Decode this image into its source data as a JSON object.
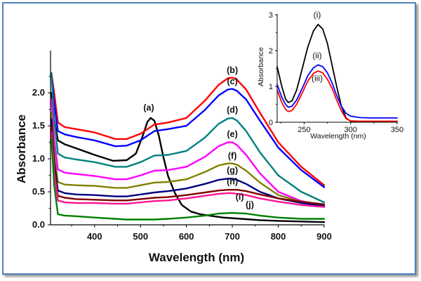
{
  "chart_data": [
    {
      "type": "line",
      "title": "",
      "xlabel": "Wavelength (nm)",
      "ylabel": "Absorbance",
      "xlim": [
        304,
        900
      ],
      "ylim": [
        0,
        2.3
      ],
      "xticks": [
        400,
        500,
        600,
        700,
        800,
        900
      ],
      "yticks": [
        "0.0",
        "0.5",
        "1.0",
        "1.5",
        "2.0"
      ],
      "grid": false,
      "legend": "inline labels",
      "series": [
        {
          "name": "(a)",
          "color": "#000000",
          "x": [
            306,
            312,
            320,
            335,
            360,
            400,
            440,
            470,
            490,
            505,
            515,
            522,
            530,
            540,
            550,
            560,
            575,
            590,
            610,
            630,
            650,
            680,
            720,
            760,
            800,
            850,
            900
          ],
          "y": [
            2.0,
            1.6,
            1.28,
            1.22,
            1.16,
            1.06,
            0.97,
            0.98,
            1.08,
            1.35,
            1.56,
            1.62,
            1.58,
            1.35,
            1.02,
            0.74,
            0.48,
            0.3,
            0.2,
            0.16,
            0.14,
            0.11,
            0.09,
            0.07,
            0.06,
            0.05,
            0.04
          ]
        },
        {
          "name": "(b)",
          "color": "#ff0000",
          "x": [
            306,
            312,
            320,
            335,
            360,
            400,
            445,
            470,
            500,
            530,
            560,
            600,
            640,
            670,
            690,
            700,
            710,
            730,
            760,
            800,
            850,
            900
          ],
          "y": [
            2.3,
            2.0,
            1.55,
            1.48,
            1.45,
            1.4,
            1.3,
            1.3,
            1.38,
            1.52,
            1.55,
            1.62,
            1.88,
            2.12,
            2.22,
            2.23,
            2.2,
            2.05,
            1.7,
            1.25,
            0.88,
            0.6
          ]
        },
        {
          "name": "(c)",
          "color": "#0000ff",
          "x": [
            306,
            312,
            320,
            335,
            360,
            400,
            445,
            470,
            500,
            530,
            560,
            600,
            640,
            670,
            690,
            700,
            710,
            730,
            760,
            800,
            850,
            900
          ],
          "y": [
            2.3,
            1.85,
            1.42,
            1.37,
            1.33,
            1.28,
            1.19,
            1.2,
            1.28,
            1.42,
            1.45,
            1.5,
            1.74,
            1.96,
            2.05,
            2.06,
            2.03,
            1.9,
            1.58,
            1.17,
            0.83,
            0.57
          ]
        },
        {
          "name": "(d)",
          "color": "#008080",
          "x": [
            306,
            312,
            320,
            335,
            360,
            400,
            445,
            470,
            500,
            530,
            560,
            600,
            640,
            670,
            690,
            700,
            710,
            730,
            760,
            800,
            850,
            900
          ],
          "y": [
            2.3,
            1.6,
            1.08,
            1.02,
            0.99,
            0.95,
            0.88,
            0.88,
            0.95,
            1.05,
            1.06,
            1.12,
            1.32,
            1.53,
            1.61,
            1.62,
            1.58,
            1.42,
            1.1,
            0.75,
            0.5,
            0.34
          ]
        },
        {
          "name": "(e)",
          "color": "#ff00ff",
          "x": [
            306,
            312,
            320,
            335,
            360,
            400,
            445,
            470,
            500,
            530,
            560,
            600,
            640,
            670,
            690,
            700,
            710,
            730,
            760,
            800,
            850,
            900
          ],
          "y": [
            1.9,
            1.3,
            0.84,
            0.79,
            0.77,
            0.74,
            0.69,
            0.69,
            0.75,
            0.82,
            0.83,
            0.88,
            1.03,
            1.19,
            1.25,
            1.25,
            1.21,
            1.06,
            0.78,
            0.5,
            0.36,
            0.29
          ]
        },
        {
          "name": "(f)",
          "color": "#808000",
          "x": [
            306,
            312,
            320,
            335,
            360,
            400,
            445,
            470,
            500,
            530,
            560,
            600,
            640,
            670,
            690,
            700,
            710,
            730,
            760,
            800,
            850,
            900
          ],
          "y": [
            1.7,
            1.1,
            0.65,
            0.61,
            0.6,
            0.59,
            0.56,
            0.56,
            0.6,
            0.64,
            0.65,
            0.69,
            0.8,
            0.9,
            0.93,
            0.93,
            0.91,
            0.82,
            0.64,
            0.45,
            0.35,
            0.31
          ]
        },
        {
          "name": "(g)",
          "color": "#000080",
          "x": [
            306,
            312,
            320,
            335,
            360,
            400,
            445,
            470,
            500,
            530,
            560,
            600,
            640,
            670,
            690,
            700,
            710,
            730,
            760,
            800,
            850,
            900
          ],
          "y": [
            1.6,
            0.95,
            0.52,
            0.48,
            0.46,
            0.45,
            0.43,
            0.43,
            0.46,
            0.49,
            0.51,
            0.55,
            0.62,
            0.68,
            0.7,
            0.7,
            0.68,
            0.62,
            0.5,
            0.4,
            0.33,
            0.29
          ]
        },
        {
          "name": "(h)",
          "color": "#800000",
          "x": [
            306,
            312,
            320,
            335,
            360,
            400,
            445,
            470,
            500,
            530,
            560,
            600,
            640,
            670,
            690,
            700,
            710,
            730,
            760,
            800,
            850,
            900
          ],
          "y": [
            1.5,
            0.85,
            0.44,
            0.41,
            0.39,
            0.38,
            0.37,
            0.37,
            0.39,
            0.41,
            0.42,
            0.45,
            0.49,
            0.52,
            0.53,
            0.53,
            0.53,
            0.51,
            0.46,
            0.4,
            0.35,
            0.31
          ]
        },
        {
          "name": "(i)",
          "color": "#ff1493",
          "x": [
            306,
            312,
            320,
            335,
            360,
            400,
            445,
            470,
            500,
            530,
            560,
            600,
            640,
            670,
            690,
            700,
            710,
            730,
            760,
            800,
            850,
            900
          ],
          "y": [
            1.4,
            0.78,
            0.37,
            0.34,
            0.33,
            0.33,
            0.32,
            0.32,
            0.34,
            0.36,
            0.37,
            0.4,
            0.44,
            0.47,
            0.48,
            0.48,
            0.47,
            0.45,
            0.4,
            0.35,
            0.3,
            0.27
          ]
        },
        {
          "name": "(j)",
          "color": "#008000",
          "x": [
            306,
            312,
            320,
            335,
            360,
            400,
            445,
            470,
            500,
            530,
            560,
            600,
            640,
            670,
            700,
            730,
            760,
            800,
            850,
            900
          ],
          "y": [
            1.3,
            0.6,
            0.16,
            0.14,
            0.13,
            0.11,
            0.09,
            0.08,
            0.08,
            0.08,
            0.09,
            0.11,
            0.14,
            0.17,
            0.18,
            0.17,
            0.14,
            0.11,
            0.09,
            0.09
          ]
        }
      ]
    },
    {
      "type": "line",
      "title": "",
      "xlabel": "Wavelength (nm)",
      "ylabel": "Absorbance",
      "xlim": [
        221,
        350
      ],
      "ylim": [
        0,
        3
      ],
      "xticks": [
        250,
        300,
        350
      ],
      "yticks": [
        "0",
        "1",
        "2",
        "3"
      ],
      "grid": false,
      "legend": "inline labels",
      "series": [
        {
          "name": "(i)",
          "color": "#000000",
          "x": [
            221,
            226,
            230,
            233,
            237,
            242,
            248,
            254,
            260,
            265,
            270,
            275,
            280,
            285,
            290,
            295,
            300,
            310,
            320,
            330,
            340,
            350
          ],
          "y": [
            1.55,
            1.0,
            0.65,
            0.55,
            0.6,
            0.9,
            1.5,
            2.1,
            2.55,
            2.73,
            2.6,
            2.2,
            1.6,
            1.0,
            0.45,
            0.12,
            0.03,
            0.02,
            0.02,
            0.02,
            0.02,
            0.02
          ]
        },
        {
          "name": "(ii)",
          "color": "#0000ff",
          "x": [
            221,
            226,
            230,
            233,
            237,
            242,
            248,
            254,
            260,
            265,
            270,
            275,
            280,
            285,
            290,
            295,
            300,
            310,
            320,
            330,
            340,
            350
          ],
          "y": [
            1.05,
            0.7,
            0.5,
            0.42,
            0.45,
            0.62,
            0.95,
            1.3,
            1.52,
            1.6,
            1.55,
            1.38,
            1.1,
            0.75,
            0.45,
            0.25,
            0.17,
            0.13,
            0.12,
            0.12,
            0.12,
            0.12
          ]
        },
        {
          "name": "(iii)",
          "color": "#ff0000",
          "x": [
            221,
            226,
            230,
            233,
            237,
            242,
            248,
            254,
            260,
            265,
            270,
            275,
            280,
            285,
            290,
            295,
            300,
            310,
            320,
            330,
            340,
            350
          ],
          "y": [
            0.9,
            0.55,
            0.36,
            0.3,
            0.33,
            0.5,
            0.82,
            1.15,
            1.36,
            1.43,
            1.38,
            1.2,
            0.95,
            0.62,
            0.32,
            0.1,
            0.04,
            0.03,
            0.03,
            0.03,
            0.03,
            0.03
          ]
        }
      ]
    }
  ]
}
